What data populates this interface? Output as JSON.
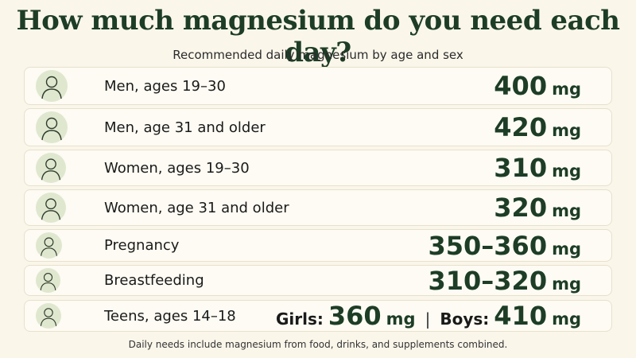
{
  "header": {
    "title": "How much magnesium do you need each day?",
    "subtitle": "Recommended daily magnesium by age and sex"
  },
  "rows": [
    {
      "label": "Men, ages 19–30",
      "amount": [
        "400",
        "mg"
      ]
    },
    {
      "label": "Men, age 31 and older",
      "amount": [
        "420",
        "mg"
      ]
    },
    {
      "label": "Women, ages 19–30",
      "amount": [
        "310",
        "mg"
      ]
    },
    {
      "label": "Women, age 31 and older",
      "amount": [
        "320",
        "mg"
      ]
    },
    {
      "label": "Pregnancy",
      "amount": [
        "350–360",
        "mg"
      ]
    },
    {
      "label": "Breastfeeding",
      "amount": [
        "310–320",
        "mg"
      ]
    },
    {
      "label": "Teens, ages 14–18",
      "amount": [
        "Girls:",
        "360",
        "mg",
        "Boys:",
        "410",
        "mg"
      ]
    }
  ],
  "footer": "Daily needs include magnesium from food, drinks, and supplements combined."
}
